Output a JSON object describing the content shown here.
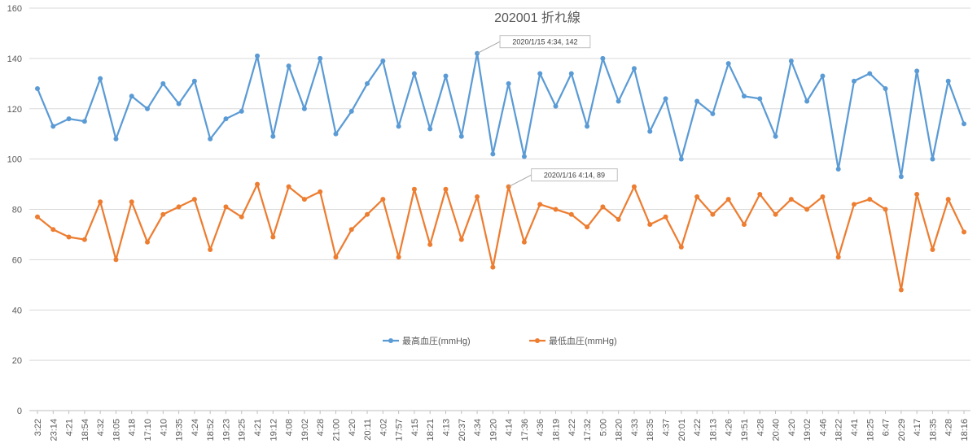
{
  "chart_data": {
    "type": "line",
    "title": "202001  折れ線",
    "ylim": [
      0,
      160
    ],
    "yticks": [
      0,
      20,
      40,
      60,
      80,
      100,
      120,
      140,
      160
    ],
    "grid": true,
    "legend_position": "bottom-center",
    "categories": [
      "3:22",
      "23:14",
      "4:21",
      "18:54",
      "4:32",
      "18:05",
      "4:18",
      "17:10",
      "4:10",
      "19:35",
      "4:24",
      "18:52",
      "19:23",
      "19:25",
      "4:21",
      "19:12",
      "4:08",
      "19:02",
      "4:28",
      "21:00",
      "4:20",
      "20:11",
      "4:02",
      "17:57",
      "4:15",
      "18:21",
      "4:13",
      "20:37",
      "4:34",
      "19:20",
      "4:14",
      "17:36",
      "4:36",
      "18:19",
      "4:22",
      "17:32",
      "5:00",
      "18:20",
      "4:33",
      "18:35",
      "4:37",
      "20:01",
      "4:22",
      "18:13",
      "4:26",
      "19:51",
      "4:28",
      "20:40",
      "4:20",
      "19:02",
      "4:46",
      "18:22",
      "4:41",
      "18:25",
      "6:47",
      "20:29",
      "4:17",
      "18:35",
      "4:28",
      "18:16"
    ],
    "series": [
      {
        "name": "最高血圧(mmHg)",
        "color": "#5B9BD5",
        "values": [
          128,
          113,
          116,
          115,
          132,
          108,
          125,
          120,
          130,
          122,
          131,
          108,
          116,
          119,
          141,
          109,
          137,
          120,
          140,
          110,
          119,
          130,
          139,
          113,
          134,
          112,
          133,
          109,
          142,
          102,
          130,
          101,
          134,
          121,
          134,
          113,
          140,
          123,
          136,
          111,
          124,
          100,
          123,
          118,
          138,
          125,
          124,
          109,
          139,
          123,
          133,
          96,
          131,
          134,
          128,
          93,
          135,
          100,
          131,
          114
        ]
      },
      {
        "name": "最低血圧(mmHg)",
        "color": "#ED7D31",
        "values": [
          77,
          72,
          69,
          68,
          83,
          60,
          83,
          67,
          78,
          81,
          84,
          64,
          81,
          77,
          90,
          69,
          89,
          84,
          87,
          61,
          72,
          78,
          84,
          61,
          88,
          66,
          88,
          68,
          85,
          57,
          89,
          67,
          82,
          80,
          78,
          73,
          81,
          76,
          89,
          74,
          77,
          65,
          85,
          78,
          84,
          74,
          86,
          78,
          84,
          80,
          85,
          61,
          82,
          84,
          80,
          48,
          86,
          64,
          84,
          71
        ]
      }
    ],
    "annotations": [
      {
        "series": 0,
        "index": 28,
        "text": "2020/1/15 4:34, 142"
      },
      {
        "series": 1,
        "index": 30,
        "text": "2020/1/16 4:14, 89"
      }
    ]
  }
}
